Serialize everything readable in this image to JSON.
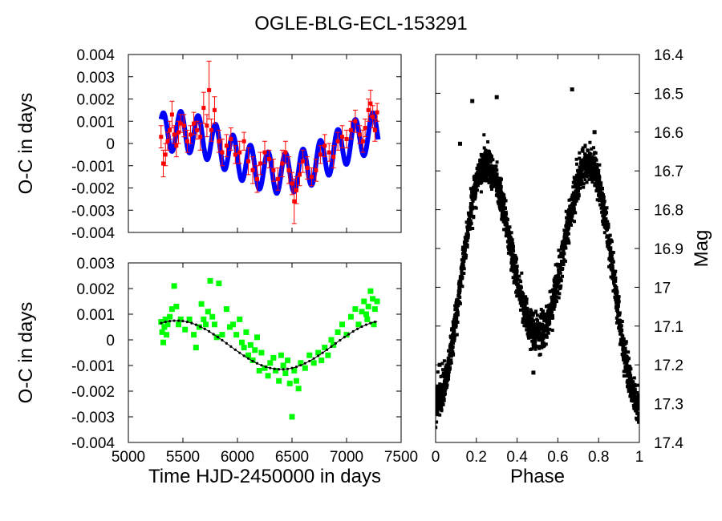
{
  "figure_title": "OGLE-BLG-ECL-153291",
  "colors": {
    "model": "#0000ff",
    "measurements": "#ff0000",
    "residuals": "#00ff00",
    "fit": "#000000",
    "lightcurve": "#000000"
  },
  "chart_data": [
    {
      "type": "line",
      "panel": "top-left",
      "title": "",
      "xlabel": "",
      "ylabel": "O-C in days",
      "xlim": [
        5000,
        7500
      ],
      "ylim": [
        -0.004,
        0.004
      ],
      "xtick_labels": [],
      "ytick_labels": [
        "0.004",
        "0.003",
        "0.002",
        "0.001",
        "0",
        "-0.001",
        "-0.002",
        "-0.003",
        "-0.004"
      ],
      "series": [
        {
          "name": "model (LTTE + oscillation)",
          "style": "thick-line",
          "x_range": [
            5300,
            7290
          ],
          "description": "long-term sinusoid plus short oscillation",
          "long_term": {
            "amplitude": 0.00095,
            "period": 1920,
            "t0": 5440,
            "offset": -0.0004
          },
          "oscillation": {
            "amplitude": 0.0009,
            "period": 160
          }
        },
        {
          "name": "measurements",
          "style": "points-with-errorbars",
          "points": [
            [
              5300,
              0.0003,
              0.0005
            ],
            [
              5320,
              -0.0009,
              0.0006
            ],
            [
              5340,
              -0.0005,
              0.0005
            ],
            [
              5360,
              0.0001,
              0.0004
            ],
            [
              5380,
              0.0006,
              0.0004
            ],
            [
              5400,
              0.0013,
              0.0006
            ],
            [
              5420,
              0.0004,
              0.0004
            ],
            [
              5440,
              -0.0001,
              0.0005
            ],
            [
              5460,
              0.0005,
              0.0005
            ],
            [
              5480,
              0.0009,
              0.0004
            ],
            [
              5510,
              0.0008,
              0.0005
            ],
            [
              5540,
              0.0001,
              0.0005
            ],
            [
              5570,
              0.0004,
              0.0004
            ],
            [
              5600,
              0.0009,
              0.0005
            ],
            [
              5630,
              0.0006,
              0.0004
            ],
            [
              5660,
              0.0003,
              0.0006
            ],
            [
              5690,
              0.0016,
              0.0007
            ],
            [
              5720,
              0.0008,
              0.0005
            ],
            [
              5740,
              0.0024,
              0.0013
            ],
            [
              5760,
              0.0006,
              0.0005
            ],
            [
              5790,
              0.0015,
              0.0006
            ],
            [
              5830,
              0.0001,
              0.0005
            ],
            [
              5860,
              -0.0004,
              0.0006
            ],
            [
              5900,
              -0.0001,
              0.0005
            ],
            [
              5940,
              0.0002,
              0.0005
            ],
            [
              5980,
              -0.0005,
              0.0004
            ],
            [
              6020,
              -0.0004,
              0.0005
            ],
            [
              6060,
              0.0001,
              0.0004
            ],
            [
              6100,
              -0.0008,
              0.0006
            ],
            [
              6140,
              -0.0012,
              0.0006
            ],
            [
              6180,
              -0.0016,
              0.0006
            ],
            [
              6210,
              -0.0009,
              0.0005
            ],
            [
              6250,
              -0.0004,
              0.0005
            ],
            [
              6290,
              -0.0007,
              0.0004
            ],
            [
              6330,
              -0.0012,
              0.0005
            ],
            [
              6370,
              -0.0016,
              0.0005
            ],
            [
              6410,
              -0.0009,
              0.0006
            ],
            [
              6440,
              -0.0004,
              0.0005
            ],
            [
              6470,
              -0.0012,
              0.0006
            ],
            [
              6500,
              -0.0018,
              0.0005
            ],
            [
              6520,
              -0.0026,
              0.001
            ],
            [
              6540,
              -0.0021,
              0.0006
            ],
            [
              6570,
              -0.0014,
              0.0005
            ],
            [
              6600,
              -0.0008,
              0.0005
            ],
            [
              6640,
              -0.0011,
              0.0005
            ],
            [
              6680,
              -0.0015,
              0.0004
            ],
            [
              6720,
              -0.0012,
              0.0005
            ],
            [
              6760,
              -0.0005,
              0.0004
            ],
            [
              6800,
              -0.0001,
              0.0005
            ],
            [
              6840,
              -0.0004,
              0.0004
            ],
            [
              6880,
              -0.0006,
              0.0005
            ],
            [
              6920,
              0.0001,
              0.0004
            ],
            [
              6960,
              0.0003,
              0.0005
            ],
            [
              7000,
              0.0002,
              0.0004
            ],
            [
              7040,
              0.0006,
              0.0004
            ],
            [
              7080,
              0.001,
              0.0005
            ],
            [
              7120,
              0.0004,
              0.0004
            ],
            [
              7150,
              0.0001,
              0.0005
            ],
            [
              7170,
              0.0007,
              0.0004
            ],
            [
              7200,
              0.0015,
              0.0005
            ],
            [
              7220,
              0.0018,
              0.0006
            ],
            [
              7240,
              0.0012,
              0.0005
            ],
            [
              7260,
              0.0006,
              0.0005
            ],
            [
              7280,
              0.0014,
              0.0004
            ]
          ]
        }
      ]
    },
    {
      "type": "scatter",
      "panel": "bottom-left",
      "title": "",
      "xlabel": "Time HJD-2450000 in days",
      "ylabel": "O-C in days",
      "xlim": [
        5000,
        7500
      ],
      "ylim": [
        -0.004,
        0.003
      ],
      "xtick_labels": [
        "5000",
        "5500",
        "6000",
        "6500",
        "7000",
        "7500"
      ],
      "ytick_labels": [
        "0.003",
        "0.002",
        "0.001",
        "0",
        "-0.001",
        "-0.002",
        "-0.003",
        "-0.004"
      ],
      "series": [
        {
          "name": "residuals",
          "style": "squares",
          "points": [
            [
              5300,
              0.0007
            ],
            [
              5310,
              0.0003
            ],
            [
              5320,
              -0.0001
            ],
            [
              5330,
              0.0005
            ],
            [
              5340,
              0.0008
            ],
            [
              5350,
              0.0002
            ],
            [
              5360,
              0.0006
            ],
            [
              5380,
              0.0009
            ],
            [
              5400,
              0.0012
            ],
            [
              5420,
              0.0021
            ],
            [
              5440,
              0.0013
            ],
            [
              5460,
              0.0006
            ],
            [
              5480,
              0.0008
            ],
            [
              5520,
              0.0004
            ],
            [
              5560,
              0.0008
            ],
            [
              5600,
              0.0002
            ],
            [
              5620,
              -0.0003
            ],
            [
              5650,
              0.0005
            ],
            [
              5670,
              0.0014
            ],
            [
              5690,
              0.0008
            ],
            [
              5710,
              0.0006
            ],
            [
              5730,
              0.0011
            ],
            [
              5750,
              0.0023
            ],
            [
              5770,
              0.0009
            ],
            [
              5790,
              0.0006
            ],
            [
              5810,
              0.0001
            ],
            [
              5830,
              0.0022
            ],
            [
              5860,
              0.0002
            ],
            [
              5900,
              0.0012
            ],
            [
              5930,
              0.0005
            ],
            [
              5960,
              0.0006
            ],
            [
              5990,
              0.0002
            ],
            [
              6020,
              0.0008
            ],
            [
              6040,
              -0.0001
            ],
            [
              6060,
              -0.0003
            ],
            [
              6080,
              0.0003
            ],
            [
              6100,
              -0.0006
            ],
            [
              6120,
              -0.0002
            ],
            [
              6140,
              -0.0008
            ],
            [
              6160,
              -0.0004
            ],
            [
              6180,
              0.0001
            ],
            [
              6200,
              -0.0012
            ],
            [
              6220,
              -0.0005
            ],
            [
              6250,
              -0.0011
            ],
            [
              6280,
              -0.0014
            ],
            [
              6300,
              -0.0009
            ],
            [
              6330,
              -0.0007
            ],
            [
              6350,
              -0.0012
            ],
            [
              6380,
              -0.0016
            ],
            [
              6400,
              -0.0006
            ],
            [
              6420,
              -0.001
            ],
            [
              6440,
              -0.0013
            ],
            [
              6460,
              -0.0008
            ],
            [
              6480,
              -0.0017
            ],
            [
              6500,
              -0.003
            ],
            [
              6520,
              -0.0012
            ],
            [
              6540,
              -0.0016
            ],
            [
              6560,
              -0.0019
            ],
            [
              6580,
              -0.0009
            ],
            [
              6620,
              -0.0011
            ],
            [
              6660,
              -0.0006
            ],
            [
              6700,
              -0.0009
            ],
            [
              6740,
              -0.0005
            ],
            [
              6770,
              -0.0008
            ],
            [
              6800,
              -0.0003
            ],
            [
              6830,
              -0.0006
            ],
            [
              6860,
              0.0
            ],
            [
              6880,
              -0.0002
            ],
            [
              6920,
              0.0003
            ],
            [
              6960,
              0.0006
            ],
            [
              7000,
              0.0002
            ],
            [
              7040,
              0.0009
            ],
            [
              7080,
              0.0012
            ],
            [
              7110,
              0.0006
            ],
            [
              7140,
              0.0011
            ],
            [
              7160,
              0.0015
            ],
            [
              7180,
              0.001
            ],
            [
              7200,
              0.0013
            ],
            [
              7220,
              0.0019
            ],
            [
              7240,
              0.0016
            ],
            [
              7260,
              0.0012
            ],
            [
              7280,
              0.0015
            ],
            [
              7250,
              0.0006
            ],
            [
              7190,
              0.0008
            ]
          ]
        },
        {
          "name": "LTTE fit",
          "style": "line-with-dots",
          "x_range": [
            5300,
            7280
          ],
          "amplitude": 0.00095,
          "period": 1920,
          "t0": 5440,
          "offset": -0.0002
        }
      ]
    },
    {
      "type": "scatter",
      "panel": "right",
      "title": "",
      "xlabel": "Phase",
      "ylabel": "Mag",
      "y_axis_side": "right",
      "y_inverted": true,
      "xlim": [
        0,
        1
      ],
      "ylim": [
        16.4,
        17.4
      ],
      "xtick_labels": [
        "0",
        "0.2",
        "0.4",
        "0.6",
        "0.8",
        "1"
      ],
      "ytick_labels": [
        "16.4",
        "16.5",
        "16.6",
        "16.7",
        "16.8",
        "16.9",
        "17",
        "17.1",
        "17.2",
        "17.3",
        "17.4"
      ],
      "series": [
        {
          "name": "light curve",
          "style": "dense-points",
          "model": {
            "maximum_mag": 16.68,
            "primary_minimum_mag": 17.3,
            "primary_minimum_phase": 0.0,
            "secondary_minimum_mag": 17.12,
            "secondary_minimum_phase": 0.5,
            "scatter_mag": 0.05
          },
          "outliers": [
            [
              0.18,
              16.52
            ],
            [
              0.3,
              16.51
            ],
            [
              0.67,
              16.49
            ],
            [
              0.12,
              16.63
            ],
            [
              0.78,
              16.6
            ],
            [
              0.48,
              17.22
            ],
            [
              0.99,
              17.34
            ],
            [
              0.02,
              17.2
            ]
          ]
        }
      ]
    }
  ]
}
